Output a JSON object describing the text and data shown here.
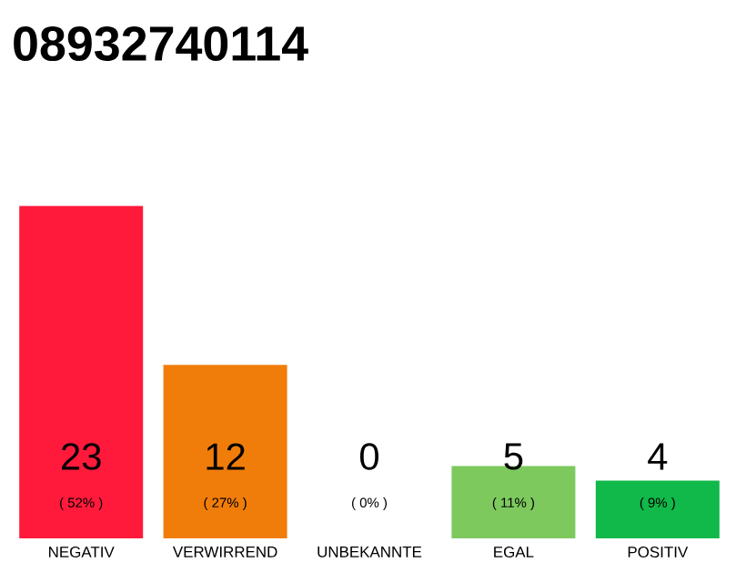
{
  "chart_data": {
    "type": "bar",
    "title": "08932740114",
    "categories": [
      "NEGATIV",
      "VERWIRREND",
      "UNBEKANNTE",
      "EGAL",
      "POSITIV"
    ],
    "values": [
      23,
      12,
      0,
      5,
      4
    ],
    "colors": [
      "#ff1a3c",
      "#f07d0a",
      "#9e9e9e",
      "#7dc95e",
      "#11b84a"
    ],
    "data_labels": true,
    "annotations": [
      "( 52% )",
      "( 27% )",
      "( 0% )",
      "( 11% )",
      "( 9% )"
    ]
  }
}
